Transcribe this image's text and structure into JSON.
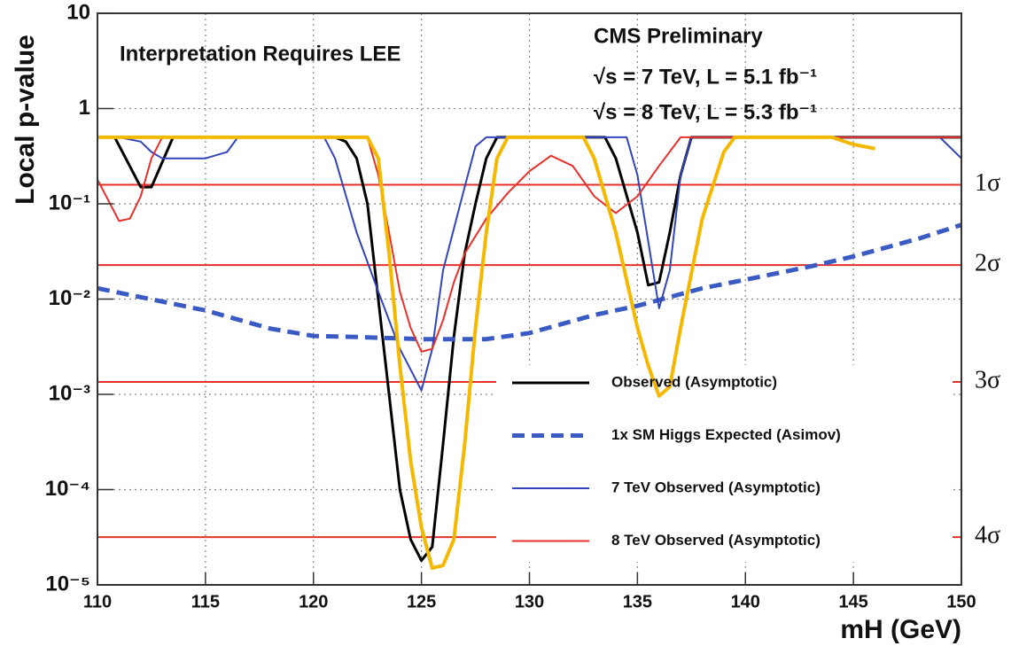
{
  "chart_data": {
    "type": "line",
    "title": "Interpretation Requires LEE",
    "annotations": [
      "CMS Preliminary",
      "√s = 7 TeV, L = 5.1 fb⁻¹",
      "√s = 8 TeV, L = 5.3 fb⁻¹"
    ],
    "xlabel": "mH (GeV)",
    "ylabel": "Local p-value",
    "xlim": [
      110,
      150
    ],
    "xticks": [
      110,
      115,
      120,
      125,
      130,
      135,
      140,
      145,
      150
    ],
    "ylim": [
      1e-05,
      10
    ],
    "ylog": true,
    "yticks": [
      {
        "value": 10,
        "label": "10"
      },
      {
        "value": 1,
        "label": "1"
      },
      {
        "value": 0.1,
        "label": "10⁻¹"
      },
      {
        "value": 0.01,
        "label": "10⁻²"
      },
      {
        "value": 0.001,
        "label": "10⁻³"
      },
      {
        "value": 0.0001,
        "label": "10⁻⁴"
      },
      {
        "value": 1e-05,
        "label": "10⁻⁵"
      }
    ],
    "grid": true,
    "legend": "lower right",
    "sigma_lines": [
      {
        "value": 0.1587,
        "label": "1σ"
      },
      {
        "value": 0.02275,
        "label": "2σ"
      },
      {
        "value": 0.00135,
        "label": "3σ"
      },
      {
        "value": 3.17e-05,
        "label": "4σ"
      }
    ],
    "sigma_color": "#e8302a",
    "series": [
      {
        "name": "Observed (Asymptotic)",
        "color": "#000000",
        "style": "solid",
        "width": 3,
        "x": [
          110,
          110.8,
          112,
          112.5,
          113.5,
          121,
          121.5,
          122,
          122.5,
          123,
          123.5,
          124,
          124.5,
          125,
          125.5,
          126,
          126.5,
          127,
          127.5,
          128,
          128.5,
          133.5,
          134,
          135,
          135.5,
          136,
          136.5,
          137,
          137.5,
          150
        ],
        "values": [
          0.5,
          0.5,
          0.15,
          0.15,
          0.5,
          0.5,
          0.45,
          0.3,
          0.1,
          0.01,
          0.001,
          0.0001,
          3e-05,
          1.8e-05,
          2.5e-05,
          0.0003,
          0.004,
          0.03,
          0.1,
          0.3,
          0.5,
          0.5,
          0.3,
          0.05,
          0.014,
          0.015,
          0.05,
          0.2,
          0.5,
          0.5
        ]
      },
      {
        "name": "1x SM Higgs Expected (Asimov)",
        "color": "#3b5bc4",
        "style": "dashed",
        "width": 5,
        "x": [
          110,
          115,
          118,
          120,
          122,
          125,
          128,
          130,
          133,
          135,
          138,
          140,
          143,
          145,
          148,
          150
        ],
        "values": [
          0.013,
          0.0076,
          0.0049,
          0.0041,
          0.004,
          0.0038,
          0.0038,
          0.0044,
          0.0068,
          0.0085,
          0.013,
          0.016,
          0.022,
          0.028,
          0.043,
          0.06
        ]
      },
      {
        "name": "7 TeV Observed (Asymptotic)",
        "color": "#3344bb",
        "style": "solid",
        "width": 2,
        "x": [
          110,
          111,
          112,
          112.5,
          113,
          115,
          116,
          116.5,
          120.5,
          121,
          122,
          123,
          124,
          125,
          125.5,
          126,
          127,
          127.5,
          128,
          134.5,
          135,
          135.5,
          136,
          136.5,
          137,
          137.5,
          149,
          150
        ],
        "values": [
          0.5,
          0.5,
          0.45,
          0.35,
          0.3,
          0.3,
          0.35,
          0.5,
          0.5,
          0.3,
          0.05,
          0.012,
          0.003,
          0.0011,
          0.003,
          0.02,
          0.15,
          0.4,
          0.5,
          0.5,
          0.2,
          0.04,
          0.008,
          0.02,
          0.2,
          0.5,
          0.5,
          0.3
        ]
      },
      {
        "name": "8 TeV Observed (Asymptotic)",
        "color": "#e8302a",
        "style": "solid",
        "width": 2,
        "x": [
          110,
          111,
          111.5,
          112,
          112.5,
          113,
          122.5,
          123,
          123.5,
          124,
          124.5,
          125,
          125.5,
          126,
          126.5,
          127,
          128,
          129,
          130,
          131,
          132,
          133,
          134,
          135,
          136,
          137,
          150
        ],
        "values": [
          0.18,
          0.066,
          0.07,
          0.12,
          0.3,
          0.5,
          0.5,
          0.2,
          0.05,
          0.012,
          0.005,
          0.0028,
          0.003,
          0.006,
          0.015,
          0.03,
          0.07,
          0.13,
          0.22,
          0.32,
          0.25,
          0.12,
          0.08,
          0.12,
          0.25,
          0.5,
          0.5
        ]
      },
      {
        "color": "#f5b800",
        "style": "solid",
        "width": 4,
        "x": [
          110,
          122.5,
          123,
          123.5,
          124,
          124.5,
          125,
          125.5,
          126,
          126.5,
          127,
          127.5,
          128,
          128.5,
          129,
          132.5,
          133,
          134,
          135,
          135.5,
          136,
          136.5,
          137,
          138,
          139,
          139.5,
          144,
          145,
          146
        ],
        "values": [
          0.5,
          0.5,
          0.3,
          0.03,
          0.002,
          0.0002,
          4e-05,
          1.5e-05,
          1.6e-05,
          3e-05,
          0.0003,
          0.005,
          0.05,
          0.3,
          0.5,
          0.5,
          0.3,
          0.05,
          0.005,
          0.002,
          0.00096,
          0.0012,
          0.005,
          0.07,
          0.35,
          0.5,
          0.5,
          0.42,
          0.38
        ]
      }
    ]
  }
}
